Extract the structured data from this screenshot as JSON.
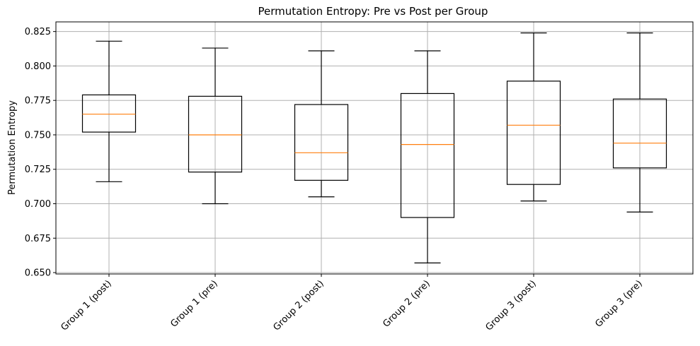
{
  "chart_data": {
    "type": "box",
    "title": "Permutation Entropy: Pre vs Post per Group",
    "xlabel": "",
    "ylabel": "Permutation Entropy",
    "ylim": [
      0.649,
      0.832
    ],
    "yticks": [
      0.65,
      0.675,
      0.7,
      0.725,
      0.75,
      0.775,
      0.8,
      0.825
    ],
    "ytick_labels": [
      "0.650",
      "0.675",
      "0.700",
      "0.725",
      "0.750",
      "0.775",
      "0.800",
      "0.825"
    ],
    "grid": true,
    "categories": [
      "Group 1 (post)",
      "Group 1 (pre)",
      "Group 2 (post)",
      "Group 2 (pre)",
      "Group 3 (post)",
      "Group 3 (pre)"
    ],
    "boxes": [
      {
        "whisker_low": 0.716,
        "q1": 0.752,
        "median": 0.765,
        "q3": 0.779,
        "whisker_high": 0.818
      },
      {
        "whisker_low": 0.7,
        "q1": 0.723,
        "median": 0.75,
        "q3": 0.778,
        "whisker_high": 0.813
      },
      {
        "whisker_low": 0.705,
        "q1": 0.717,
        "median": 0.737,
        "q3": 0.772,
        "whisker_high": 0.811
      },
      {
        "whisker_low": 0.657,
        "q1": 0.69,
        "median": 0.743,
        "q3": 0.78,
        "whisker_high": 0.811
      },
      {
        "whisker_low": 0.702,
        "q1": 0.714,
        "median": 0.757,
        "q3": 0.789,
        "whisker_high": 0.824
      },
      {
        "whisker_low": 0.694,
        "q1": 0.726,
        "median": 0.744,
        "q3": 0.776,
        "whisker_high": 0.824
      }
    ],
    "colors": {
      "box": "#000000",
      "median": "#ff7f0e",
      "grid": "#b0b0b0"
    }
  }
}
